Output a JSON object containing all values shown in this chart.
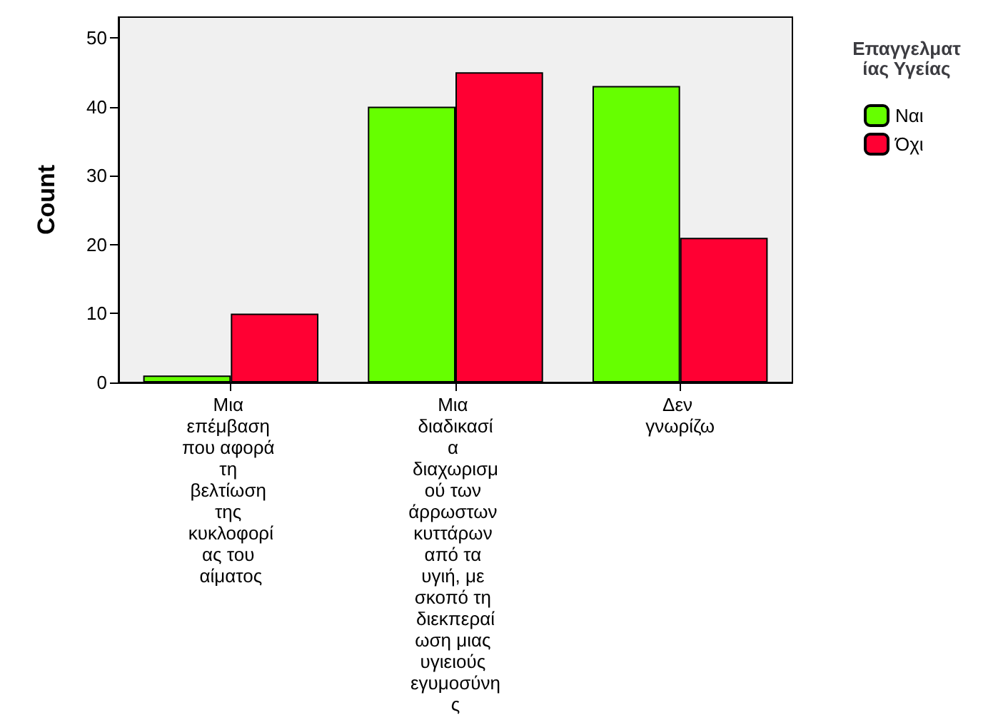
{
  "chart_data": {
    "type": "bar",
    "ylabel": "Count",
    "legend_title": "Επαγγελματίας Υγείας",
    "categories": [
      "Μια επέμβαση που αφορά τη βελτίωση της κυκλοφορίας του αίματος",
      "Μια διαδικασία διαχωρισμού των άρρωστων κυττάρων από τα υγιή, με σκοπό τη διεκπεραίωση μιας υγιειούς εγυμοσύνης",
      "Δεν γνωρίζω"
    ],
    "series": [
      {
        "name": "Ναι",
        "color": "#66ff00",
        "values": [
          1,
          40,
          43
        ]
      },
      {
        "name": "Όχι",
        "color": "#ff0033",
        "values": [
          10,
          45,
          21
        ]
      }
    ],
    "ylim": [
      0,
      53
    ],
    "yticks": [
      0,
      10,
      20,
      30,
      40,
      50
    ],
    "grid": false,
    "legend": "top right"
  }
}
